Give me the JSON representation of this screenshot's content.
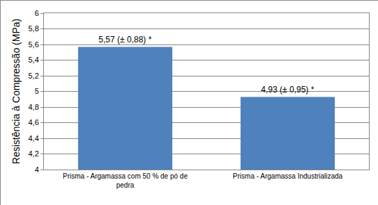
{
  "chart_data": {
    "type": "bar",
    "ylabel": "Resistência à Compressão (MPa)",
    "categories": [
      "Prisma - Argamassa com 50 % de pó de pedra",
      "Prisma - Argamassa Industrializada"
    ],
    "values": [
      5.57,
      4.93
    ],
    "value_labels": [
      "5,57 (± 0,88) *",
      "4,93 (± 0,95) *"
    ],
    "color": "#4f81bd",
    "ylim": [
      4,
      6
    ],
    "yticks": [
      4,
      {
        "value": 4.2,
        "label": "4,2"
      },
      {
        "value": 4.4,
        "label": "4,4"
      },
      {
        "value": 4.6,
        "label": "4,6"
      },
      {
        "value": 4.8,
        "label": "4,8"
      },
      5,
      {
        "value": 5.2,
        "label": "5,2"
      },
      {
        "value": 5.4,
        "label": "5,4"
      },
      {
        "value": 5.6,
        "label": "5,6"
      },
      {
        "value": 5.8,
        "label": "5,8"
      },
      6
    ],
    "grid": true,
    "data_labels": true
  }
}
